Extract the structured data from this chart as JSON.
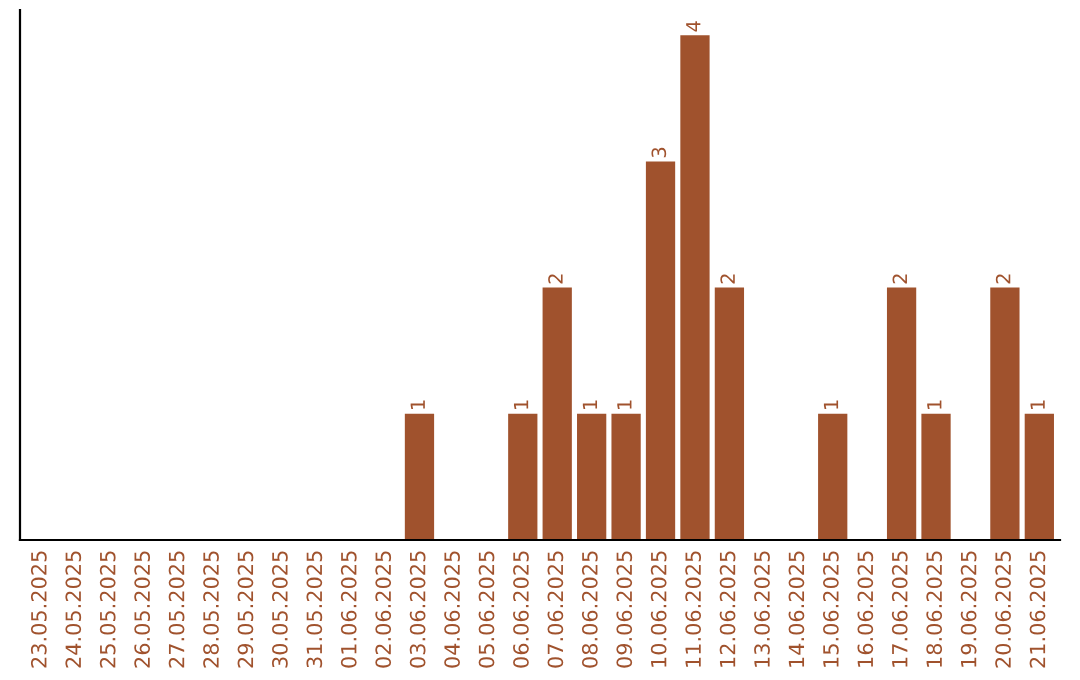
{
  "chart_data": {
    "type": "bar",
    "categories": [
      "23.05.2025",
      "24.05.2025",
      "25.05.2025",
      "26.05.2025",
      "27.05.2025",
      "28.05.2025",
      "29.05.2025",
      "30.05.2025",
      "31.05.2025",
      "01.06.2025",
      "02.06.2025",
      "03.06.2025",
      "04.06.2025",
      "05.06.2025",
      "06.06.2025",
      "07.06.2025",
      "08.06.2025",
      "09.06.2025",
      "10.06.2025",
      "11.06.2025",
      "12.06.2025",
      "13.06.2025",
      "14.06.2025",
      "15.06.2025",
      "16.06.2025",
      "17.06.2025",
      "18.06.2025",
      "19.06.2025",
      "20.06.2025",
      "21.06.2025"
    ],
    "values": [
      0,
      0,
      0,
      0,
      0,
      0,
      0,
      0,
      0,
      0,
      0,
      1,
      0,
      0,
      1,
      2,
      1,
      1,
      3,
      4,
      2,
      0,
      0,
      1,
      0,
      2,
      1,
      0,
      2,
      1
    ],
    "value_labels": [
      null,
      null,
      null,
      null,
      null,
      null,
      null,
      null,
      null,
      null,
      null,
      "1",
      null,
      null,
      "1",
      "2",
      "1",
      "1",
      "3",
      "4",
      "2",
      null,
      null,
      "1",
      null,
      "2",
      "1",
      null,
      "2",
      "1"
    ],
    "color": "#a0522d",
    "ylim": [
      0,
      4.2
    ],
    "tick_labels": "x",
    "grid": false,
    "legend": false
  }
}
